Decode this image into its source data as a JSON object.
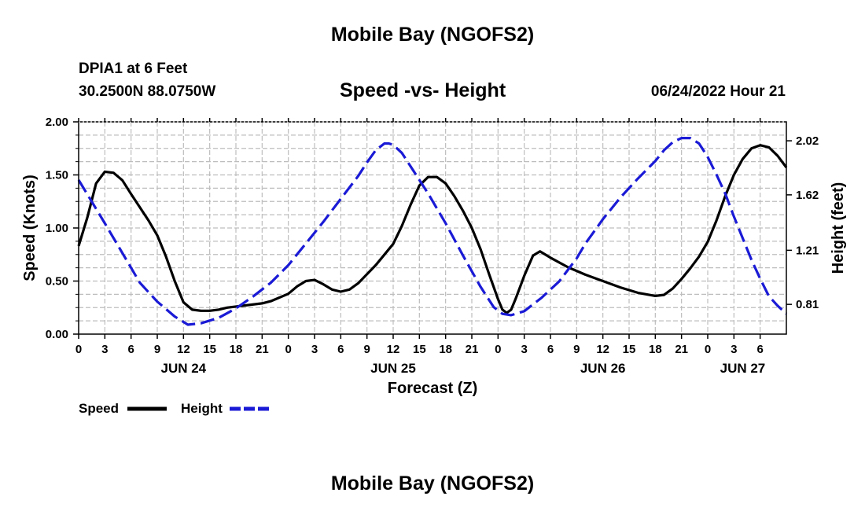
{
  "header": {
    "title": "Mobile Bay (NGOFS2)",
    "station": "DPIA1 at 6 Feet",
    "coords": "30.2500N  88.0750W",
    "chart_title": "Speed -vs- Height",
    "datetime": "06/24/2022 Hour 21"
  },
  "footer": {
    "title": "Mobile Bay (NGOFS2)"
  },
  "legend": {
    "speed_label": "Speed",
    "height_label": "Height"
  },
  "colors": {
    "speed": "#000000",
    "height": "#1a1ad6",
    "grid": "#bdbdbd"
  },
  "chart_data": {
    "type": "line",
    "xlabel": "Forecast (Z)",
    "ylabel_left": "Speed (Knots)",
    "ylabel_right": "Height (feet)",
    "x_range_hours": [
      0,
      81
    ],
    "x_ticks": [
      {
        "h": 0,
        "label": "0"
      },
      {
        "h": 3,
        "label": "3"
      },
      {
        "h": 6,
        "label": "6"
      },
      {
        "h": 9,
        "label": "9"
      },
      {
        "h": 12,
        "label": "12"
      },
      {
        "h": 15,
        "label": "15"
      },
      {
        "h": 18,
        "label": "18"
      },
      {
        "h": 21,
        "label": "21"
      },
      {
        "h": 24,
        "label": "0"
      },
      {
        "h": 27,
        "label": "3"
      },
      {
        "h": 30,
        "label": "6"
      },
      {
        "h": 33,
        "label": "9"
      },
      {
        "h": 36,
        "label": "12"
      },
      {
        "h": 39,
        "label": "15"
      },
      {
        "h": 42,
        "label": "18"
      },
      {
        "h": 45,
        "label": "21"
      },
      {
        "h": 48,
        "label": "0"
      },
      {
        "h": 51,
        "label": "3"
      },
      {
        "h": 54,
        "label": "6"
      },
      {
        "h": 57,
        "label": "9"
      },
      {
        "h": 60,
        "label": "12"
      },
      {
        "h": 63,
        "label": "15"
      },
      {
        "h": 66,
        "label": "18"
      },
      {
        "h": 69,
        "label": "21"
      },
      {
        "h": 72,
        "label": "0"
      },
      {
        "h": 75,
        "label": "3"
      },
      {
        "h": 78,
        "label": "6"
      }
    ],
    "date_labels": [
      {
        "h": 12,
        "label": "JUN 24"
      },
      {
        "h": 36,
        "label": "JUN 25"
      },
      {
        "h": 60,
        "label": "JUN 26"
      },
      {
        "h": 76,
        "label": "JUN 27"
      }
    ],
    "y_left_range": [
      0,
      2
    ],
    "y_left_ticks": [
      "0.00",
      "0.50",
      "1.00",
      "1.50",
      "2.00"
    ],
    "y_right_range": [
      0.59,
      2.16
    ],
    "y_right_ticks": [
      {
        "v": 0.81,
        "label": "0.81"
      },
      {
        "v": 1.21,
        "label": "1.21"
      },
      {
        "v": 1.62,
        "label": "1.62"
      },
      {
        "v": 2.02,
        "label": "2.02"
      }
    ],
    "series": [
      {
        "name": "Speed",
        "axis": "left",
        "style": "solid",
        "points": [
          [
            0,
            0.83
          ],
          [
            1,
            1.1
          ],
          [
            2,
            1.42
          ],
          [
            3,
            1.53
          ],
          [
            4,
            1.52
          ],
          [
            5,
            1.45
          ],
          [
            6,
            1.32
          ],
          [
            8,
            1.07
          ],
          [
            9,
            0.93
          ],
          [
            10,
            0.73
          ],
          [
            11,
            0.5
          ],
          [
            12,
            0.3
          ],
          [
            13,
            0.23
          ],
          [
            14,
            0.22
          ],
          [
            15,
            0.22
          ],
          [
            16,
            0.23
          ],
          [
            17,
            0.25
          ],
          [
            18,
            0.26
          ],
          [
            21,
            0.29
          ],
          [
            22,
            0.31
          ],
          [
            24,
            0.38
          ],
          [
            25,
            0.45
          ],
          [
            26,
            0.5
          ],
          [
            27,
            0.51
          ],
          [
            28,
            0.47
          ],
          [
            29,
            0.42
          ],
          [
            30,
            0.4
          ],
          [
            31,
            0.42
          ],
          [
            32,
            0.48
          ],
          [
            34,
            0.65
          ],
          [
            36,
            0.85
          ],
          [
            37,
            1.02
          ],
          [
            38,
            1.22
          ],
          [
            39,
            1.4
          ],
          [
            40,
            1.48
          ],
          [
            41,
            1.48
          ],
          [
            42,
            1.42
          ],
          [
            43,
            1.3
          ],
          [
            44,
            1.16
          ],
          [
            45,
            1.0
          ],
          [
            46,
            0.8
          ],
          [
            47,
            0.56
          ],
          [
            48,
            0.33
          ],
          [
            48.5,
            0.23
          ],
          [
            49,
            0.2
          ],
          [
            49.5,
            0.23
          ],
          [
            50,
            0.33
          ],
          [
            51,
            0.55
          ],
          [
            52,
            0.74
          ],
          [
            52.8,
            0.78
          ],
          [
            54,
            0.72
          ],
          [
            56,
            0.63
          ],
          [
            58,
            0.56
          ],
          [
            60,
            0.5
          ],
          [
            62,
            0.44
          ],
          [
            64,
            0.39
          ],
          [
            66,
            0.36
          ],
          [
            67,
            0.37
          ],
          [
            68,
            0.43
          ],
          [
            69,
            0.52
          ],
          [
            70,
            0.62
          ],
          [
            71,
            0.73
          ],
          [
            72,
            0.87
          ],
          [
            73,
            1.07
          ],
          [
            74,
            1.3
          ],
          [
            75,
            1.5
          ],
          [
            76,
            1.65
          ],
          [
            77,
            1.75
          ],
          [
            78,
            1.78
          ],
          [
            79,
            1.76
          ],
          [
            80,
            1.68
          ],
          [
            81,
            1.57
          ]
        ]
      },
      {
        "name": "Height",
        "axis": "right",
        "style": "dashed",
        "points": [
          [
            0,
            1.73
          ],
          [
            1.5,
            1.57
          ],
          [
            3,
            1.41
          ],
          [
            5,
            1.19
          ],
          [
            7,
            0.97
          ],
          [
            9,
            0.83
          ],
          [
            11,
            0.72
          ],
          [
            12.5,
            0.66
          ],
          [
            14,
            0.67
          ],
          [
            16,
            0.71
          ],
          [
            18,
            0.78
          ],
          [
            20,
            0.87
          ],
          [
            22,
            0.97
          ],
          [
            24,
            1.1
          ],
          [
            26,
            1.26
          ],
          [
            28,
            1.42
          ],
          [
            30,
            1.59
          ],
          [
            32,
            1.76
          ],
          [
            33,
            1.86
          ],
          [
            34,
            1.95
          ],
          [
            35,
            2.0
          ],
          [
            35.5,
            2.0
          ],
          [
            36,
            1.99
          ],
          [
            37,
            1.93
          ],
          [
            38,
            1.83
          ],
          [
            40,
            1.63
          ],
          [
            42,
            1.41
          ],
          [
            44,
            1.17
          ],
          [
            46,
            0.94
          ],
          [
            47.5,
            0.79
          ],
          [
            48.5,
            0.74
          ],
          [
            49.5,
            0.73
          ],
          [
            51,
            0.76
          ],
          [
            53,
            0.86
          ],
          [
            55,
            0.98
          ],
          [
            57,
            1.15
          ],
          [
            58,
            1.26
          ],
          [
            59,
            1.35
          ],
          [
            60,
            1.44
          ],
          [
            62,
            1.6
          ],
          [
            64,
            1.74
          ],
          [
            66,
            1.87
          ],
          [
            67,
            1.95
          ],
          [
            68,
            2.01
          ],
          [
            69,
            2.04
          ],
          [
            70,
            2.04
          ],
          [
            71,
            2.0
          ],
          [
            72,
            1.9
          ],
          [
            73,
            1.77
          ],
          [
            74,
            1.63
          ],
          [
            75,
            1.46
          ],
          [
            76,
            1.3
          ],
          [
            77,
            1.14
          ],
          [
            78,
            1.0
          ],
          [
            79,
            0.87
          ],
          [
            80,
            0.8
          ],
          [
            81,
            0.74
          ]
        ]
      }
    ]
  }
}
